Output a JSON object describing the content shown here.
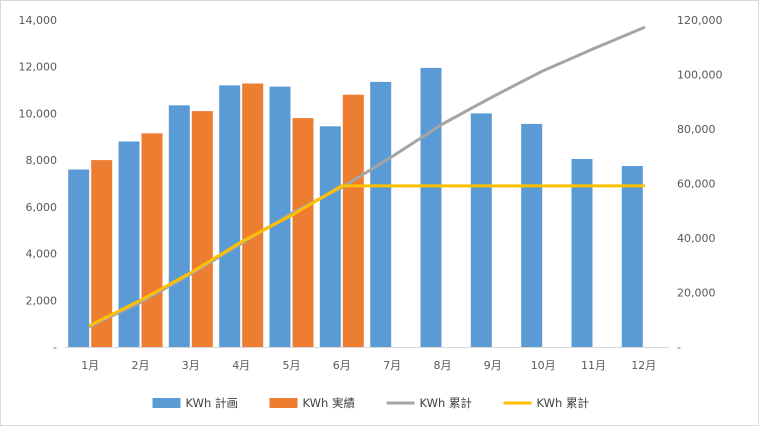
{
  "chart_data": {
    "type": "bar",
    "categories": [
      "1月",
      "2月",
      "3月",
      "4月",
      "5月",
      "6月",
      "7月",
      "8月",
      "9月",
      "10月",
      "11月",
      "12月"
    ],
    "series": [
      {
        "name": "KWh 計画",
        "kind": "bar",
        "axis": "left",
        "color": "#5b9bd5",
        "values": [
          7600,
          8800,
          10350,
          11200,
          11150,
          9450,
          11350,
          11950,
          10000,
          9550,
          8050,
          7750
        ]
      },
      {
        "name": "KWh 実績",
        "kind": "bar",
        "axis": "left",
        "color": "#ed7d31",
        "values": [
          8000,
          9150,
          10100,
          11280,
          9800,
          10800,
          null,
          null,
          null,
          null,
          null,
          null
        ]
      },
      {
        "name": "KWh 累計",
        "kind": "line",
        "axis": "right",
        "color": "#a5a5a5",
        "values": [
          7600,
          16400,
          26750,
          37950,
          49100,
          58550,
          69900,
          81850,
          91850,
          101400,
          109450,
          117200
        ]
      },
      {
        "name": "KWh 累計",
        "kind": "line",
        "axis": "right",
        "color": "#ffc000",
        "values": [
          8000,
          17150,
          27250,
          38530,
          48330,
          59130,
          59130,
          59130,
          59130,
          59130,
          59130,
          59130
        ]
      }
    ],
    "yaxis_left": {
      "min": 0,
      "max": 14000,
      "ticks": [
        0,
        2000,
        4000,
        6000,
        8000,
        10000,
        12000,
        14000
      ],
      "tick_labels": [
        "-",
        "2,000",
        "4,000",
        "6,000",
        "8,000",
        "10,000",
        "12,000",
        "14,000"
      ]
    },
    "yaxis_right": {
      "min": 0,
      "max": 120000,
      "ticks": [
        0,
        20000,
        40000,
        60000,
        80000,
        100000,
        120000
      ],
      "tick_labels": [
        "-",
        "20,000",
        "40,000",
        "60,000",
        "80,000",
        "100,000",
        "120,000"
      ]
    },
    "title": "",
    "xlabel": "",
    "grid": false,
    "legend_position": "bottom"
  }
}
